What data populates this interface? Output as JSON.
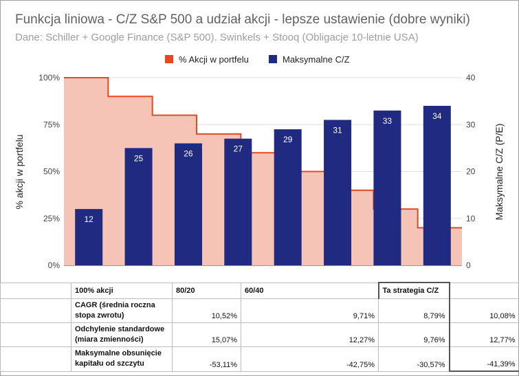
{
  "chart_data": {
    "type": "bar",
    "title": "Funkcja liniowa - C/Z S&P 500 a udział akcji - lepsze ustawienie (dobre wyniki)",
    "subtitle": "Dane: Schiller + Google Finance (S&P 500). Swinkels + Stooq (Obligacje 10-letnie USA)",
    "legend_position": "top",
    "series": [
      {
        "name": "% Akcji w portfelu",
        "kind": "stepped-area",
        "color": "#e8481e",
        "fill": "#f5c4b6",
        "axis": "left",
        "values": [
          100,
          90,
          80,
          70,
          60,
          50,
          40,
          30,
          20
        ]
      },
      {
        "name": "Maksymalne C/Z",
        "kind": "bar",
        "color": "#1f2a80",
        "axis": "right",
        "values": [
          12,
          25,
          26,
          27,
          29,
          31,
          33,
          34
        ]
      }
    ],
    "y_left": {
      "label": "% akcji w portfelu",
      "ticks": [
        "0%",
        "25%",
        "50%",
        "75%",
        "100%"
      ],
      "range": [
        0,
        100
      ]
    },
    "y_right": {
      "label": "Maksymalne C/Z (P/E)",
      "ticks": [
        "0",
        "10",
        "20",
        "30",
        "40"
      ],
      "range": [
        0,
        40
      ]
    },
    "grid": true
  },
  "table": {
    "headers": [
      "",
      "100% akcji",
      "80/20",
      "60/40",
      "Ta strategia C/Z"
    ],
    "rows": [
      {
        "label": "CAGR (średnia roczna stopa zwrotu)",
        "values": [
          "10,52%",
          "9,71%",
          "8,79%",
          "10,08%"
        ]
      },
      {
        "label": "Odchylenie standardowe (miara zmienności)",
        "values": [
          "15,07%",
          "12,27%",
          "9,76%",
          "12,77%"
        ]
      },
      {
        "label": "Maksymalne obsunięcie kapitału od szczytu",
        "values": [
          "-53,11%",
          "-42,75%",
          "-30,57%",
          "-41,39%"
        ]
      }
    ]
  }
}
